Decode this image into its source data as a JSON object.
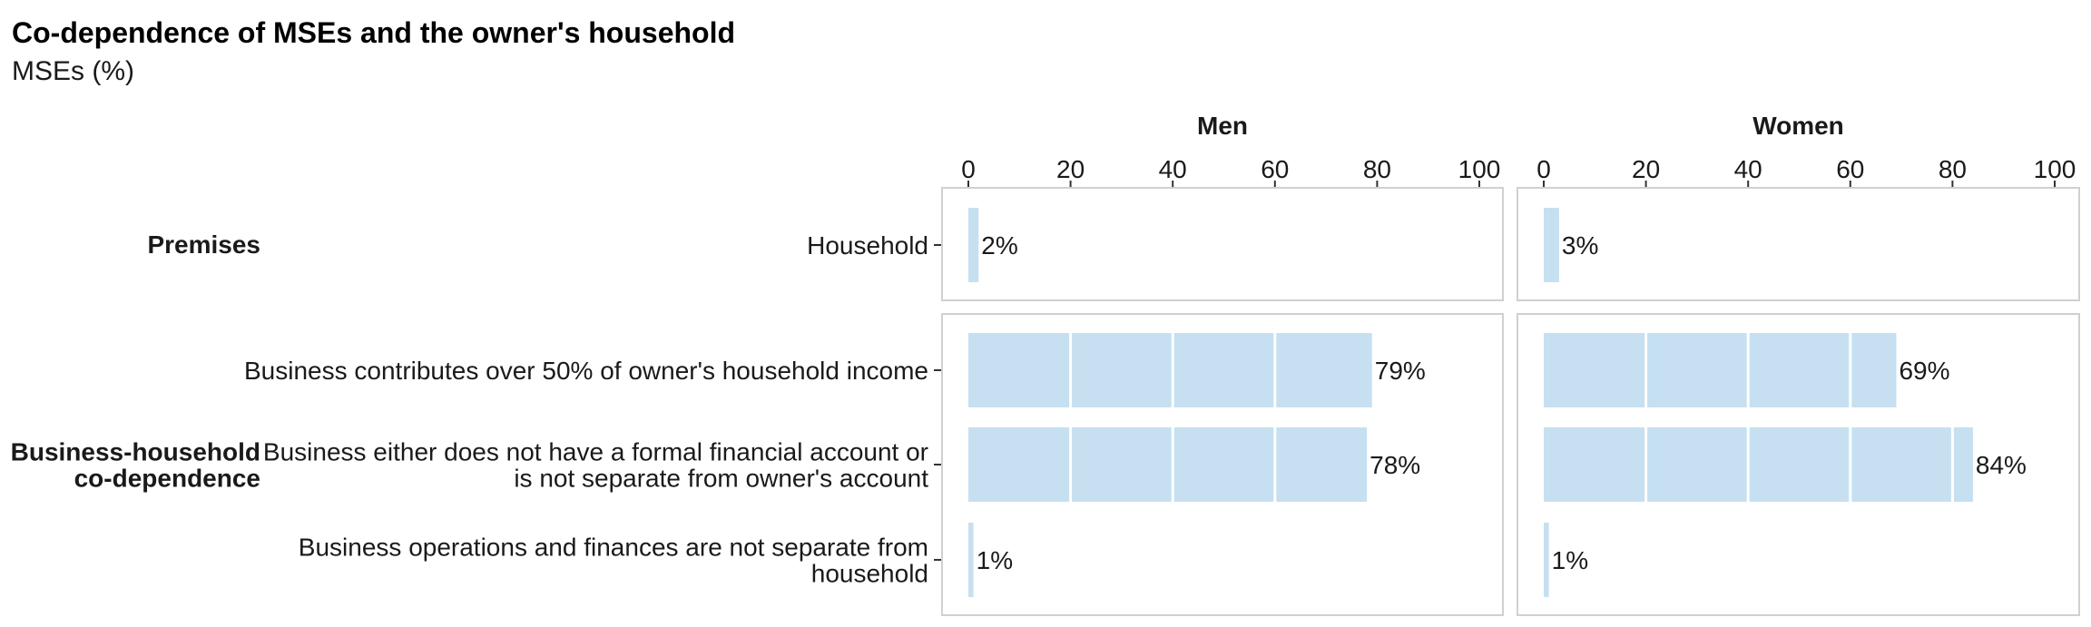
{
  "title": "Co-dependence of MSEs and the owner's household",
  "subtitle": "MSEs (%)",
  "colors": {
    "bar": "#c6e0f1",
    "grid": "#ffffff",
    "panel_border": "#d0d0d0",
    "text": "#1a1a1a"
  },
  "chart_data": {
    "type": "bar",
    "orientation": "horizontal",
    "title": "Co-dependence of MSEs and the owner's household",
    "subtitle": "MSEs (%)",
    "xlim": [
      0,
      100
    ],
    "x_ticks": [
      "0",
      "20",
      "40",
      "60",
      "80",
      "100"
    ],
    "grid": true,
    "facets": [
      "Men",
      "Women"
    ],
    "groups": [
      {
        "name": [
          "Premises"
        ],
        "categories": [
          {
            "label": [
              "Household"
            ],
            "values": {
              "Men": 2,
              "Women": 3
            }
          }
        ]
      },
      {
        "name": [
          "Business-household",
          "co-dependence"
        ],
        "categories": [
          {
            "label": [
              "Business contributes over 50% of owner's household income"
            ],
            "values": {
              "Men": 79,
              "Women": 69
            }
          },
          {
            "label": [
              "Business either does not have a formal financial account or",
              "is not separate from owner's account"
            ],
            "values": {
              "Men": 78,
              "Women": 84
            }
          },
          {
            "label": [
              "Business operations and finances are not separate from",
              "household"
            ],
            "values": {
              "Men": 1,
              "Women": 1
            }
          }
        ]
      }
    ],
    "data_labels": {
      "Men": [
        "2%",
        "79%",
        "78%",
        "1%"
      ],
      "Women": [
        "3%",
        "69%",
        "84%",
        "1%"
      ]
    }
  }
}
